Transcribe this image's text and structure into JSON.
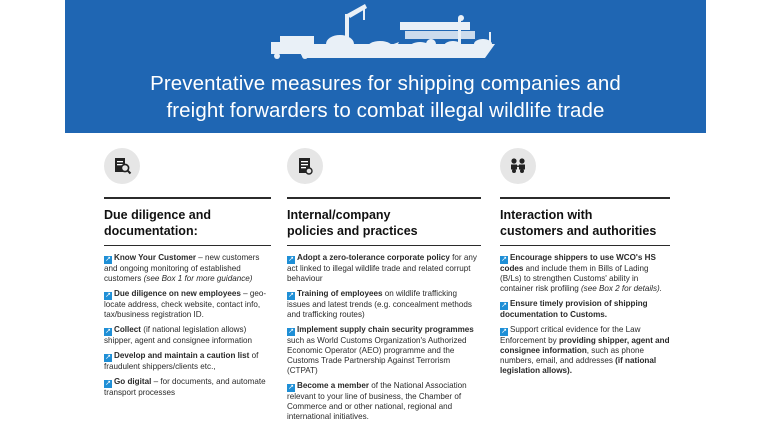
{
  "banner": {
    "title_line1": "Preventative measures for shipping companies and",
    "title_line2": "freight forwarders to combat illegal wildlife trade"
  },
  "columns": [
    {
      "icon": "document-search-icon",
      "heading_line1": "Due diligence and",
      "heading_line2": "documentation:",
      "items": [
        {
          "bold": "Know Your Customer",
          "text": " – new customers and ongoing monitoring of established customers ",
          "italic": "(see Box 1 for more guidance)",
          "tail": ""
        },
        {
          "bold": "Due diligence on new employees",
          "text": " – geo-locate address, check website, contact info, tax/business registration ID.",
          "italic": "",
          "tail": ""
        },
        {
          "bold": "Collect",
          "text": " (if national legislation allows) shipper, agent and consignee information",
          "italic": "",
          "tail": ""
        },
        {
          "bold": "Develop and maintain a caution list",
          "text": " of fraudulent shippers/clients etc.,",
          "italic": "",
          "tail": ""
        },
        {
          "bold": "Go digital",
          "text": " – for documents, and automate transport processes",
          "italic": "",
          "tail": ""
        }
      ]
    },
    {
      "icon": "certificate-document-icon",
      "heading_line1": "Internal/company",
      "heading_line2": "policies and practices",
      "items": [
        {
          "bold": "Adopt a zero-tolerance corporate policy",
          "text": " for any act linked to illegal wildlife trade and related corrupt behaviour",
          "italic": "",
          "tail": ""
        },
        {
          "bold": "Training of employees",
          "text": " on wildlife trafficking issues and latest trends (e.g. concealment methods and trafficking routes)",
          "italic": "",
          "tail": ""
        },
        {
          "bold": "Implement supply chain security programmes",
          "text": " such as World Customs Organization's Authorized Economic Operator (AEO) programme and the Customs Trade Partnership Against Terrorism (CTPAT)",
          "italic": "",
          "tail": ""
        },
        {
          "bold": "Become a member",
          "text": " of the National Association relevant to your line of business, the Chamber of Commerce and or other national, regional and international initiatives.",
          "italic": "",
          "tail": ""
        }
      ]
    },
    {
      "icon": "people-interaction-icon",
      "heading_line1": "Interaction with",
      "heading_line2": "customers and authorities",
      "items": [
        {
          "bold": "Encourage shippers to use WCO's HS codes",
          "text": " and include them in Bills of Lading (B/Ls) to strengthen Customs' ability in container risk profiling ",
          "italic": "(see Box 2 for details).",
          "tail": ""
        },
        {
          "bold": "Ensure timely provision of shipping documentation to Customs.",
          "text": "",
          "italic": "",
          "tail": ""
        },
        {
          "bold": "",
          "text": "Support critical evidence for the Law Enforcement by ",
          "italic": "",
          "tail": "",
          "bold2": "providing shipper, agent and consignee information",
          "text2": ", such as phone numbers, email, and addresses ",
          "bold3": "(if national legislation allows)."
        }
      ]
    }
  ]
}
